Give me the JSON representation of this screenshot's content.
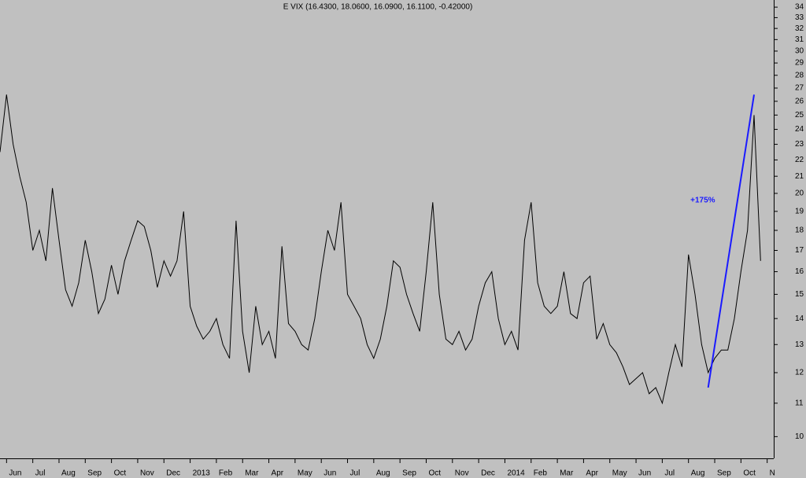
{
  "chart_data": {
    "type": "line",
    "title": "E VIX (16.4300, 18.0600, 16.0900, 16.1100, -0.42000)",
    "log_scale": true,
    "color": "#000000",
    "categories": [
      null,
      "Jun",
      null,
      null,
      null,
      "Jul",
      null,
      null,
      null,
      "Aug",
      null,
      null,
      null,
      "Sep",
      null,
      null,
      null,
      "Oct",
      null,
      null,
      null,
      "Nov",
      null,
      null,
      null,
      "Dec",
      null,
      null,
      null,
      "2013",
      null,
      null,
      null,
      "Feb",
      null,
      null,
      null,
      "Mar",
      null,
      null,
      null,
      "Apr",
      null,
      null,
      null,
      "May",
      null,
      null,
      null,
      "Jun",
      null,
      null,
      null,
      "Jul",
      null,
      null,
      null,
      "Aug",
      null,
      null,
      null,
      "Sep",
      null,
      null,
      null,
      "Oct",
      null,
      null,
      null,
      "Nov",
      null,
      null,
      null,
      "Dec",
      null,
      null,
      null,
      "2014",
      null,
      null,
      null,
      "Feb",
      null,
      null,
      null,
      "Mar",
      null,
      null,
      null,
      "Apr",
      null,
      null,
      null,
      "May",
      null,
      null,
      null,
      "Jun",
      null,
      null,
      null,
      "Jul",
      null,
      null,
      null,
      "Aug",
      null,
      null,
      null,
      "Sep",
      null,
      null,
      null,
      "Oct",
      null,
      null,
      null,
      "N"
    ],
    "values": [
      22.5,
      26.5,
      23,
      21,
      19.5,
      17,
      18,
      16.5,
      20.3,
      17.5,
      15.2,
      14.5,
      15.5,
      17.5,
      16,
      14.2,
      14.8,
      16.3,
      15,
      16.5,
      17.5,
      18.5,
      18.2,
      17,
      15.3,
      16.5,
      15.8,
      16.5,
      19,
      14.5,
      13.7,
      13.2,
      13.5,
      14,
      13,
      12.5,
      18.5,
      13.5,
      12,
      14.5,
      13,
      13.5,
      12.5,
      17.2,
      13.8,
      13.5,
      13,
      12.8,
      14,
      16,
      18,
      17,
      19.5,
      15,
      14.5,
      14,
      13,
      12.5,
      13.2,
      14.5,
      16.5,
      16.2,
      15,
      14.2,
      13.5,
      16,
      19.5,
      15,
      13.2,
      13,
      13.5,
      12.8,
      13.2,
      14.5,
      15.5,
      16,
      14,
      13,
      13.5,
      12.8,
      17.5,
      19.5,
      15.5,
      14.5,
      14.2,
      14.5,
      16,
      14.2,
      14,
      15.5,
      15.8,
      13.2,
      13.8,
      13,
      12.7,
      12.2,
      11.6,
      11.8,
      12,
      11.3,
      11.5,
      11,
      12,
      13,
      12.2,
      16.8,
      15,
      13,
      12,
      12.5,
      12.8,
      12.8,
      14,
      16,
      18,
      25,
      16.5,
      null
    ],
    "trend": {
      "color": "#1a1aff",
      "label": "+175%",
      "values": [
        null,
        null,
        null,
        null,
        null,
        null,
        null,
        null,
        null,
        null,
        null,
        null,
        null,
        null,
        null,
        null,
        null,
        null,
        null,
        null,
        null,
        null,
        null,
        null,
        null,
        null,
        null,
        null,
        null,
        null,
        null,
        null,
        null,
        null,
        null,
        null,
        null,
        null,
        null,
        null,
        null,
        null,
        null,
        null,
        null,
        null,
        null,
        null,
        null,
        null,
        null,
        null,
        null,
        null,
        null,
        null,
        null,
        null,
        null,
        null,
        null,
        null,
        null,
        null,
        null,
        null,
        null,
        null,
        null,
        null,
        null,
        null,
        null,
        null,
        null,
        null,
        null,
        null,
        null,
        null,
        null,
        null,
        null,
        null,
        null,
        null,
        null,
        null,
        null,
        null,
        null,
        null,
        null,
        null,
        null,
        null,
        null,
        null,
        null,
        null,
        null,
        null,
        null,
        null,
        null,
        null,
        null,
        null,
        11.5,
        null,
        null,
        null,
        null,
        null,
        null,
        26.5,
        null,
        null
      ]
    },
    "ylim": [
      9.4,
      34.7
    ],
    "yticks": [
      10,
      11,
      12,
      13,
      14,
      15,
      16,
      17,
      18,
      19,
      20,
      21,
      22,
      23,
      24,
      25,
      26,
      27,
      28,
      29,
      30,
      31,
      32,
      33,
      34
    ]
  }
}
